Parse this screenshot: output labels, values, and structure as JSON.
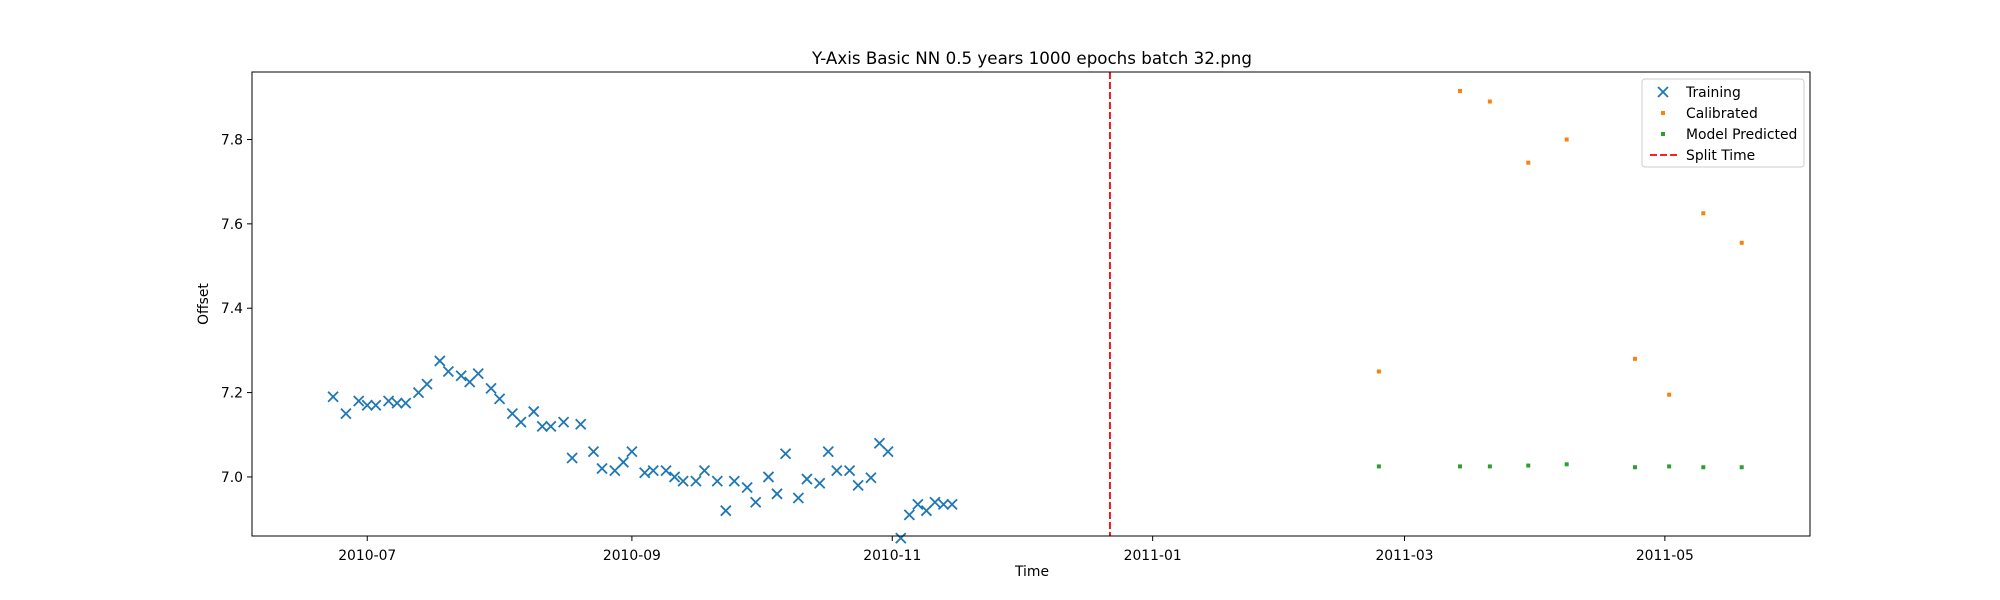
{
  "chart_data": {
    "type": "scatter",
    "title": "Y-Axis Basic NN 0.5 years 1000 epochs batch 32.png",
    "xlabel": "Time",
    "ylabel": "Offset",
    "x_axis_type": "date",
    "xlim": [
      "2010-06-04",
      "2011-06-04"
    ],
    "ylim": [
      6.86,
      7.96
    ],
    "x_ticks": [
      "2010-07",
      "2010-09",
      "2010-11",
      "2011-01",
      "2011-03",
      "2011-05"
    ],
    "x_tick_dates": [
      "2010-07-01",
      "2010-09-01",
      "2010-11-01",
      "2011-01-01",
      "2011-03-01",
      "2011-05-01"
    ],
    "y_ticks": [
      7.0,
      7.2,
      7.4,
      7.6,
      7.8
    ],
    "y_tick_labels": [
      "7.0",
      "7.2",
      "7.4",
      "7.6",
      "7.8"
    ],
    "grid": false,
    "legend_position": "top-right",
    "split_time": "2010-12-22",
    "series": [
      {
        "name": "Training",
        "marker": "x",
        "color": "#1f77b4",
        "x": [
          "2010-06-23",
          "2010-06-26",
          "2010-06-29",
          "2010-07-01",
          "2010-07-03",
          "2010-07-06",
          "2010-07-08",
          "2010-07-10",
          "2010-07-13",
          "2010-07-15",
          "2010-07-18",
          "2010-07-20",
          "2010-07-23",
          "2010-07-25",
          "2010-07-27",
          "2010-07-30",
          "2010-08-01",
          "2010-08-04",
          "2010-08-06",
          "2010-08-09",
          "2010-08-11",
          "2010-08-13",
          "2010-08-16",
          "2010-08-18",
          "2010-08-20",
          "2010-08-23",
          "2010-08-25",
          "2010-08-28",
          "2010-08-30",
          "2010-09-01",
          "2010-09-04",
          "2010-09-06",
          "2010-09-09",
          "2010-09-11",
          "2010-09-13",
          "2010-09-16",
          "2010-09-18",
          "2010-09-21",
          "2010-09-23",
          "2010-09-25",
          "2010-09-28",
          "2010-09-30",
          "2010-10-03",
          "2010-10-05",
          "2010-10-07",
          "2010-10-10",
          "2010-10-12",
          "2010-10-15",
          "2010-10-17",
          "2010-10-19",
          "2010-10-22",
          "2010-10-24",
          "2010-10-27",
          "2010-10-29",
          "2010-10-31",
          "2010-11-03",
          "2010-11-05",
          "2010-11-07",
          "2010-11-09",
          "2010-11-11",
          "2010-11-13",
          "2010-11-15"
        ],
        "values": [
          7.19,
          7.15,
          7.18,
          7.17,
          7.17,
          7.18,
          7.175,
          7.175,
          7.2,
          7.22,
          7.275,
          7.25,
          7.24,
          7.225,
          7.245,
          7.21,
          7.185,
          7.15,
          7.13,
          7.155,
          7.12,
          7.12,
          7.13,
          7.045,
          7.125,
          7.06,
          7.02,
          7.015,
          7.035,
          7.06,
          7.01,
          7.015,
          7.015,
          7.0,
          6.99,
          6.99,
          7.015,
          6.99,
          6.92,
          6.99,
          6.975,
          6.94,
          7.0,
          6.96,
          7.055,
          6.95,
          6.995,
          6.985,
          7.06,
          7.015,
          7.015,
          6.98,
          6.998,
          7.08,
          7.06,
          6.855,
          6.91,
          6.935,
          6.92,
          6.94,
          6.935,
          6.935
        ]
      },
      {
        "name": "Calibrated",
        "marker": "point",
        "color": "#ff7f0e",
        "x": [
          "2011-02-23",
          "2011-03-14",
          "2011-03-21",
          "2011-03-30",
          "2011-04-08",
          "2011-04-24",
          "2011-05-02",
          "2011-05-10",
          "2011-05-19"
        ],
        "values": [
          7.25,
          7.915,
          7.89,
          7.745,
          7.8,
          7.28,
          7.195,
          7.625,
          7.555
        ]
      },
      {
        "name": "Model Predicted",
        "marker": "point",
        "color": "#2ca02c",
        "x": [
          "2011-02-23",
          "2011-03-14",
          "2011-03-21",
          "2011-03-30",
          "2011-04-08",
          "2011-04-24",
          "2011-05-02",
          "2011-05-10",
          "2011-05-19"
        ],
        "values": [
          7.025,
          7.025,
          7.025,
          7.027,
          7.03,
          7.023,
          7.025,
          7.023,
          7.023
        ]
      }
    ],
    "split_line": {
      "name": "Split Time",
      "color": "#ff0000",
      "style": "dashed"
    }
  }
}
